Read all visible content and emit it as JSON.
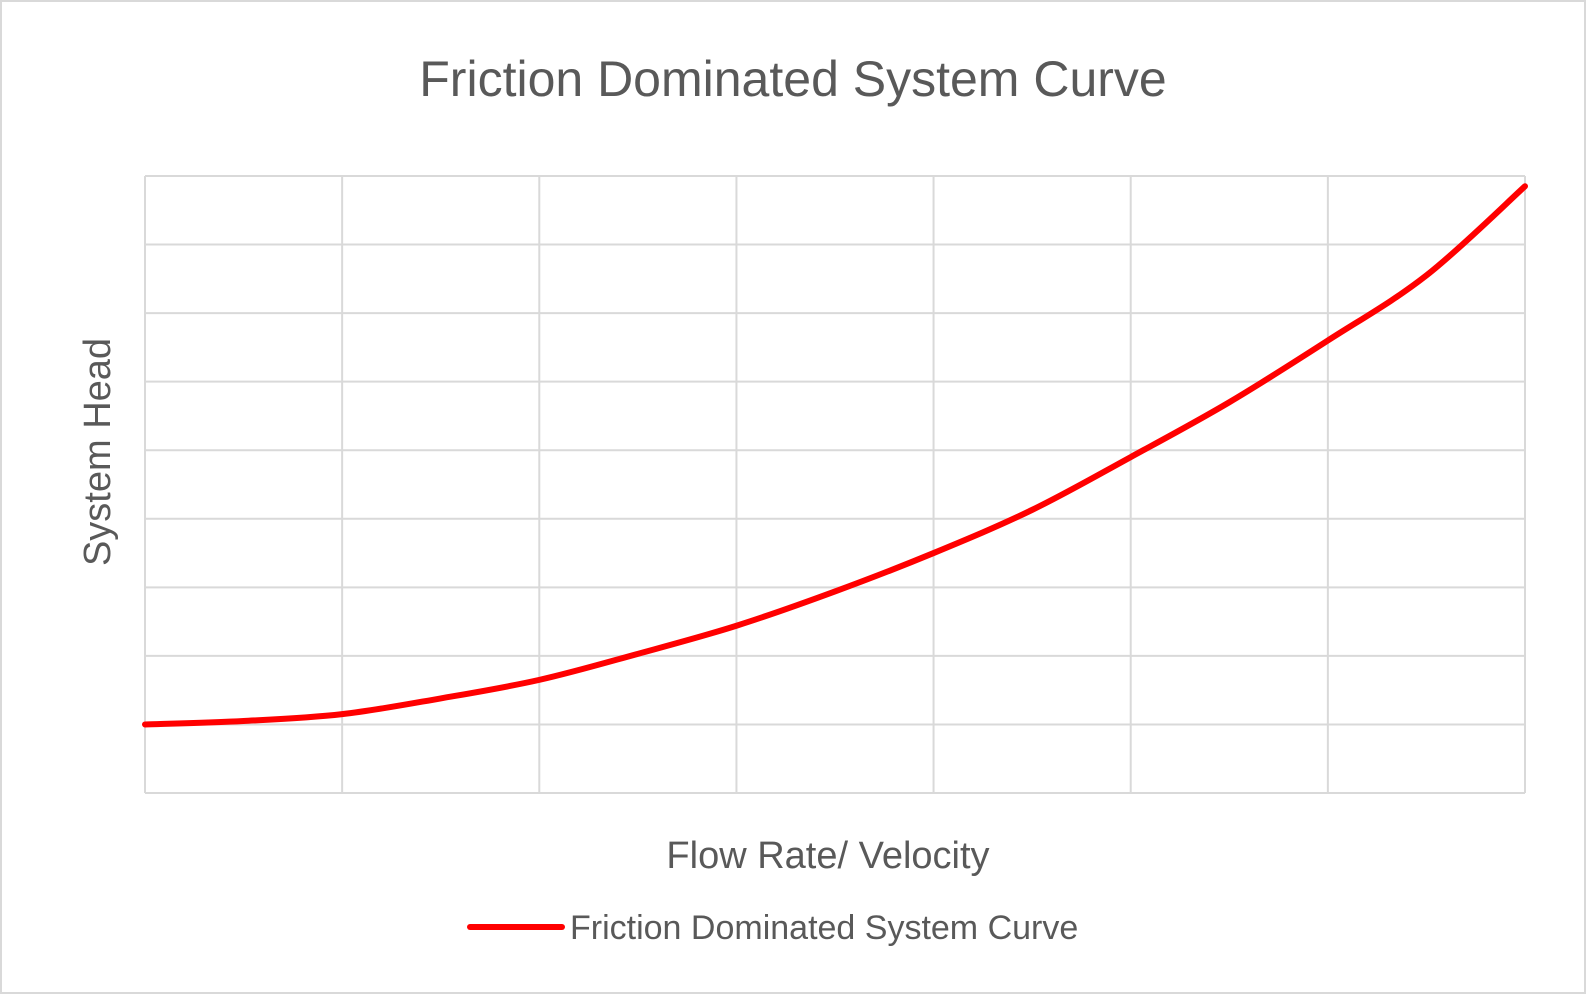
{
  "chart_data": {
    "type": "line",
    "title": "Friction Dominated System Curve",
    "xlabel": "Flow Rate/ Velocity",
    "ylabel": "System Head",
    "xlim": [
      0,
      7
    ],
    "ylim": [
      0,
      9
    ],
    "x_tick_count": 7,
    "y_tick_count": 9,
    "show_tick_labels": false,
    "grid": true,
    "legend_position": "bottom",
    "series": [
      {
        "name": "Friction Dominated System Curve",
        "color": "#ff0000",
        "x": [
          0,
          0.5,
          1,
          1.5,
          2,
          2.5,
          3,
          3.5,
          4,
          4.5,
          5,
          5.5,
          6,
          6.5,
          7
        ],
        "y": [
          1,
          1.05,
          1.15,
          1.38,
          1.65,
          2.03,
          2.44,
          2.94,
          3.5,
          4.13,
          4.9,
          5.7,
          6.6,
          7.55,
          8.85
        ]
      }
    ]
  }
}
